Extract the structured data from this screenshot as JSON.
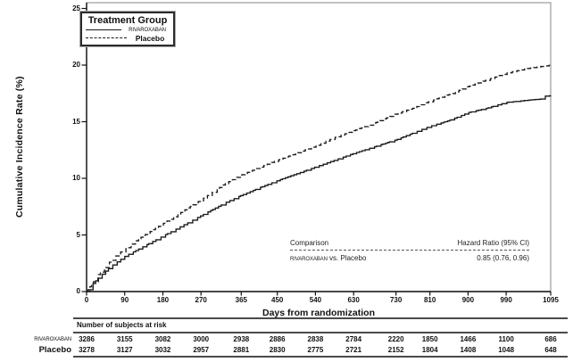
{
  "chart_data": {
    "type": "line",
    "subtype": "kaplan-meier-cumulative-incidence",
    "title": "",
    "xlabel": "Days from randomization",
    "ylabel": "Cumulative Incidence Rate (%)",
    "xlim": [
      0,
      1095
    ],
    "ylim": [
      0,
      25
    ],
    "x_ticks": [
      0,
      90,
      180,
      270,
      365,
      450,
      540,
      630,
      730,
      810,
      900,
      990,
      1095
    ],
    "y_ticks": [
      0,
      5,
      10,
      15,
      20,
      25
    ],
    "grid": "off",
    "legend_position": "top-left",
    "series": [
      {
        "name": "RIVAROXABAN",
        "line_style": "solid",
        "points": [
          [
            0,
            0
          ],
          [
            15,
            0.7
          ],
          [
            30,
            1.3
          ],
          [
            60,
            2.3
          ],
          [
            90,
            3.1
          ],
          [
            120,
            3.7
          ],
          [
            150,
            4.3
          ],
          [
            180,
            4.9
          ],
          [
            210,
            5.5
          ],
          [
            240,
            6.1
          ],
          [
            270,
            6.7
          ],
          [
            330,
            7.9
          ],
          [
            365,
            8.5
          ],
          [
            410,
            9.2
          ],
          [
            450,
            9.8
          ],
          [
            495,
            10.4
          ],
          [
            540,
            11.0
          ],
          [
            585,
            11.6
          ],
          [
            630,
            12.2
          ],
          [
            680,
            12.8
          ],
          [
            730,
            13.4
          ],
          [
            770,
            14.0
          ],
          [
            810,
            14.6
          ],
          [
            855,
            15.1
          ],
          [
            900,
            15.8
          ],
          [
            945,
            16.2
          ],
          [
            990,
            16.7
          ],
          [
            1040,
            16.9
          ],
          [
            1072,
            17.0
          ],
          [
            1080,
            17.25
          ],
          [
            1095,
            17.3
          ]
        ]
      },
      {
        "name": "Placebo",
        "line_style": "dashed",
        "points": [
          [
            0,
            0
          ],
          [
            15,
            0.8
          ],
          [
            30,
            1.6
          ],
          [
            60,
            2.85
          ],
          [
            90,
            3.8
          ],
          [
            120,
            4.6
          ],
          [
            150,
            5.3
          ],
          [
            180,
            6.0
          ],
          [
            210,
            6.7
          ],
          [
            240,
            7.4
          ],
          [
            270,
            8.1
          ],
          [
            330,
            9.6
          ],
          [
            365,
            10.3
          ],
          [
            410,
            11.0
          ],
          [
            450,
            11.6
          ],
          [
            495,
            12.2
          ],
          [
            540,
            12.9
          ],
          [
            585,
            13.6
          ],
          [
            630,
            14.2
          ],
          [
            680,
            14.9
          ],
          [
            730,
            15.7
          ],
          [
            770,
            16.2
          ],
          [
            810,
            16.8
          ],
          [
            855,
            17.4
          ],
          [
            900,
            18.1
          ],
          [
            945,
            18.7
          ],
          [
            990,
            19.3
          ],
          [
            1040,
            19.7
          ],
          [
            1095,
            20.0
          ]
        ]
      }
    ]
  },
  "axes": {
    "y_title": "Cumulative Incidence Rate (%)",
    "x_title": "Days from randomization"
  },
  "legend": {
    "title": "Treatment Group",
    "items": [
      {
        "label": "RIVAROXABAN",
        "style": "solid"
      },
      {
        "label": "Placebo",
        "style": "dashed"
      }
    ]
  },
  "inset": {
    "col1_header": "Comparison",
    "col2_header": "Hazard Ratio (95% CI)",
    "row_group": "RIVAROXABAN",
    "row_rest": "vs. Placebo",
    "value": "0.85 (0.76, 0.96)"
  },
  "risk_table": {
    "title": "Number of subjects at risk",
    "rows": [
      {
        "label": "RIVAROXABAN",
        "values": [
          3286,
          3155,
          3082,
          3000,
          2938,
          2886,
          2838,
          2784,
          2220,
          1850,
          1466,
          1100,
          686
        ]
      },
      {
        "label": "Placebo",
        "values": [
          3278,
          3127,
          3032,
          2957,
          2881,
          2830,
          2775,
          2721,
          2152,
          1804,
          1408,
          1048,
          648
        ]
      }
    ]
  },
  "colors": {
    "line": "#1a1a1a",
    "frame": "#999999",
    "axis": "#111111",
    "rule": "#4a4a4a"
  }
}
